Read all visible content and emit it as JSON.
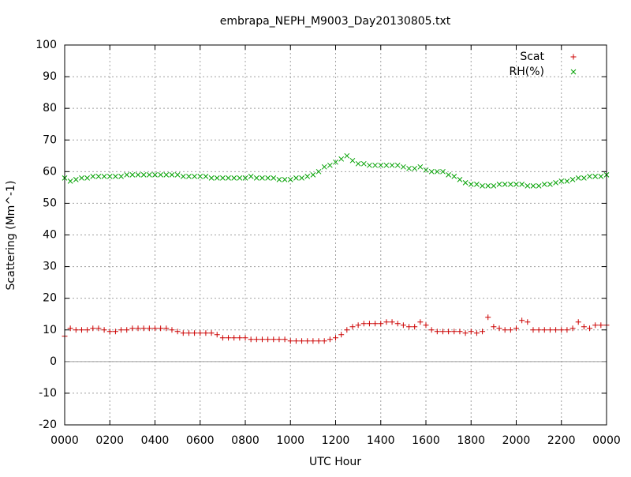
{
  "chart_data": {
    "type": "scatter",
    "title": "embrapa_NEPH_M9003_Day20130805.txt",
    "x_label": "UTC Hour",
    "y_label": "Scattering (Mm^-1)",
    "xlim": [
      0,
      24
    ],
    "xticks": [
      {
        "value": 0,
        "label": "0000"
      },
      {
        "value": 2,
        "label": "0200"
      },
      {
        "value": 4,
        "label": "0400"
      },
      {
        "value": 6,
        "label": "0600"
      },
      {
        "value": 8,
        "label": "0800"
      },
      {
        "value": 10,
        "label": "1000"
      },
      {
        "value": 12,
        "label": "1200"
      },
      {
        "value": 14,
        "label": "1400"
      },
      {
        "value": 16,
        "label": "1600"
      },
      {
        "value": 18,
        "label": "1800"
      },
      {
        "value": 20,
        "label": "2000"
      },
      {
        "value": 22,
        "label": "2200"
      },
      {
        "value": 24,
        "label": "0000"
      }
    ],
    "ylim": [
      -20,
      100
    ],
    "yticks": [
      -20,
      -10,
      0,
      10,
      20,
      30,
      40,
      50,
      60,
      70,
      80,
      90,
      100
    ],
    "grid": true,
    "zero_line": true,
    "legend": "top-right",
    "x": [
      0,
      0.25,
      0.5,
      0.75,
      1,
      1.25,
      1.5,
      1.75,
      2,
      2.25,
      2.5,
      2.75,
      3,
      3.25,
      3.5,
      3.75,
      4,
      4.25,
      4.5,
      4.75,
      5,
      5.25,
      5.5,
      5.75,
      6,
      6.25,
      6.5,
      6.75,
      7,
      7.25,
      7.5,
      7.75,
      8,
      8.25,
      8.5,
      8.75,
      9,
      9.25,
      9.5,
      9.75,
      10,
      10.25,
      10.5,
      10.75,
      11,
      11.25,
      11.5,
      11.75,
      12,
      12.25,
      12.5,
      12.75,
      13,
      13.25,
      13.5,
      13.75,
      14,
      14.25,
      14.5,
      14.75,
      15,
      15.25,
      15.5,
      15.75,
      16,
      16.25,
      16.5,
      16.75,
      17,
      17.25,
      17.5,
      17.75,
      18,
      18.25,
      18.5,
      18.75,
      19,
      19.25,
      19.5,
      19.75,
      20,
      20.25,
      20.5,
      20.75,
      21,
      21.25,
      21.5,
      21.75,
      22,
      22.25,
      22.5,
      22.75,
      23,
      23.25,
      23.5,
      23.75,
      24
    ],
    "series": [
      {
        "name": "Scat",
        "color": "#cc0000",
        "marker": "+",
        "values": [
          8,
          10.5,
          10,
          10,
          10,
          10.5,
          10.5,
          10,
          9.5,
          9.5,
          10,
          10,
          10.5,
          10.5,
          10.5,
          10.5,
          10.5,
          10.5,
          10.5,
          10,
          9.5,
          9,
          9,
          9,
          9,
          9,
          9,
          8.5,
          7.5,
          7.5,
          7.5,
          7.5,
          7.5,
          7,
          7,
          7,
          7,
          7,
          7,
          7,
          6.5,
          6.5,
          6.5,
          6.5,
          6.5,
          6.5,
          6.5,
          7,
          7.5,
          8.5,
          10,
          11,
          11.5,
          12,
          12,
          12,
          12,
          12.5,
          12.5,
          12,
          11.5,
          11,
          11,
          12.5,
          11.5,
          10,
          9.5,
          9.5,
          9.5,
          9.5,
          9.5,
          9,
          9.5,
          9,
          9.5,
          14,
          11,
          10.5,
          10,
          10,
          10.5,
          13,
          12.5,
          10,
          10,
          10,
          10,
          10,
          10,
          10,
          10.5,
          12.5,
          11,
          10.5,
          11.5,
          11.5,
          11.5
        ]
      },
      {
        "name": "RH(%)",
        "color": "#00a000",
        "marker": "x",
        "values": [
          58,
          57,
          57.5,
          58,
          58,
          58.5,
          58.5,
          58.5,
          58.5,
          58.5,
          58.5,
          59,
          59,
          59,
          59,
          59,
          59,
          59,
          59,
          59,
          59,
          58.5,
          58.5,
          58.5,
          58.5,
          58.5,
          58,
          58,
          58,
          58,
          58,
          58,
          58,
          58.5,
          58,
          58,
          58,
          58,
          57.5,
          57.5,
          57.5,
          58,
          58,
          58.5,
          59,
          60,
          61.5,
          62,
          63,
          64,
          65,
          63.5,
          62.5,
          62.5,
          62,
          62,
          62,
          62,
          62,
          62,
          61.5,
          61,
          61,
          61.5,
          60.5,
          60,
          60,
          60,
          59,
          58.5,
          57.5,
          56.5,
          56,
          56,
          55.5,
          55.5,
          55.5,
          56,
          56,
          56,
          56,
          56,
          55.5,
          55.5,
          55.5,
          56,
          56,
          56.5,
          57,
          57,
          57.5,
          58,
          58,
          58.5,
          58.5,
          58.5,
          59
        ]
      }
    ]
  }
}
